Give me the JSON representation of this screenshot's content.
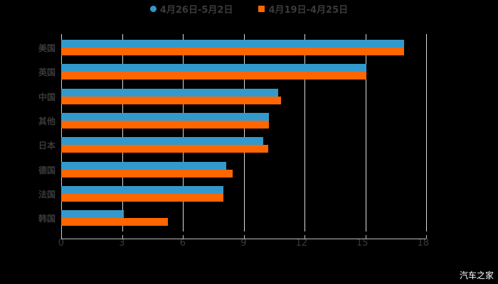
{
  "chart_data": {
    "type": "bar",
    "orientation": "horizontal",
    "title": "",
    "xlabel": "",
    "ylabel": "",
    "xlim": [
      0,
      18
    ],
    "xticks": [
      0,
      3,
      6,
      9,
      12,
      15,
      18
    ],
    "grid": true,
    "legend_position": "top",
    "categories": [
      "美国",
      "英国",
      "中国",
      "其他",
      "日本",
      "德国",
      "法国",
      "韩国"
    ],
    "series": [
      {
        "name": "4月26日-5月2日",
        "color": "#3399cc",
        "values": [
          16.9,
          15.05,
          10.7,
          10.25,
          9.95,
          8.15,
          8.0,
          3.1
        ]
      },
      {
        "name": "4月19日-4月25日",
        "color": "#ff6600",
        "values": [
          16.9,
          15.05,
          10.85,
          10.25,
          10.2,
          8.45,
          8.0,
          5.25
        ]
      }
    ]
  },
  "legend": {
    "s1": "4月26日-5月2日",
    "s2": "4月19日-4月25日"
  },
  "watermark": "汽车之家"
}
